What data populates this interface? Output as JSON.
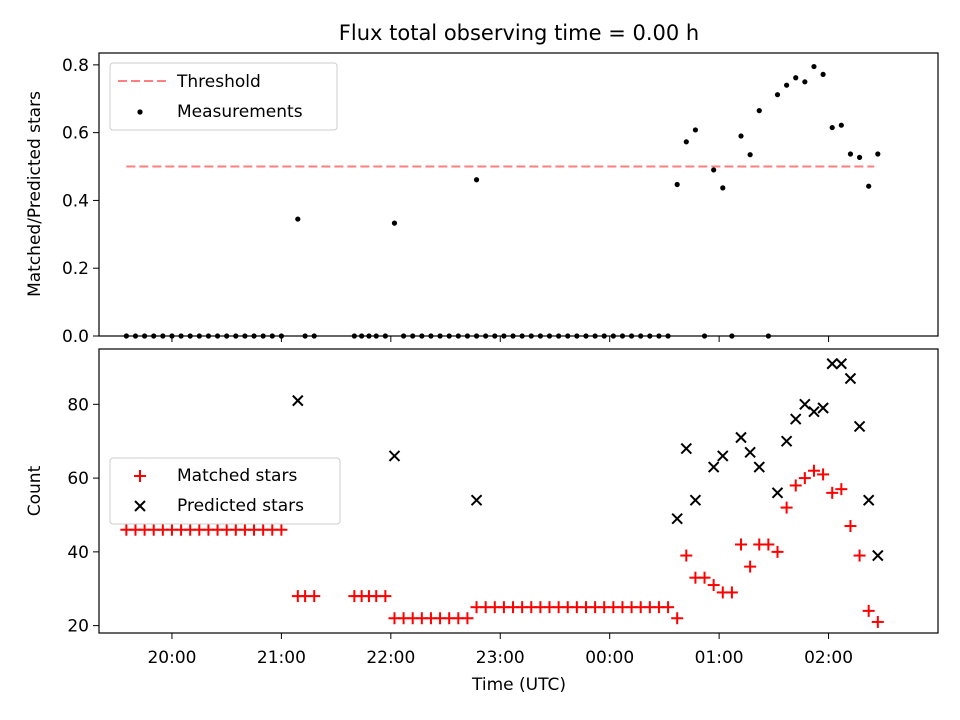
{
  "chart_data": [
    {
      "type": "scatter",
      "title": "Flux total observing time = 0.00 h",
      "xlabel": "",
      "ylabel": "Matched/Predicted stars",
      "x_range": [
        "19:20",
        "03:00"
      ],
      "ylim": [
        0,
        0.835
      ],
      "yticks": [
        0.0,
        0.2,
        0.4,
        0.6,
        0.8
      ],
      "ytick_labels": [
        "0.0",
        "0.2",
        "0.4",
        "0.6",
        "0.8"
      ],
      "xticks": [
        "20:00",
        "21:00",
        "22:00",
        "23:00",
        "00:00",
        "01:00",
        "02:00"
      ],
      "show_xtick_labels": false,
      "grid": false,
      "legend_placement": "upper-left",
      "threshold": {
        "name": "Threshold",
        "color": "#ff7f7f",
        "style": "dashed",
        "y": 0.5,
        "x_start": "19:35",
        "x_end": "02:25"
      },
      "series": [
        {
          "name": "Measurements",
          "color": "#000000",
          "marker": "dot",
          "points": [
            [
              "19:35",
              0
            ],
            [
              "19:40",
              0
            ],
            [
              "19:45",
              0
            ],
            [
              "19:50",
              0
            ],
            [
              "19:55",
              0
            ],
            [
              "20:00",
              0
            ],
            [
              "20:05",
              0
            ],
            [
              "20:10",
              0
            ],
            [
              "20:15",
              0
            ],
            [
              "20:20",
              0
            ],
            [
              "20:25",
              0
            ],
            [
              "20:30",
              0
            ],
            [
              "20:35",
              0
            ],
            [
              "20:40",
              0
            ],
            [
              "20:45",
              0
            ],
            [
              "20:50",
              0
            ],
            [
              "20:55",
              0
            ],
            [
              "21:00",
              0
            ],
            [
              "21:09",
              0.345
            ],
            [
              "21:13",
              0
            ],
            [
              "21:18",
              0
            ],
            [
              "21:40",
              0
            ],
            [
              "21:44",
              0
            ],
            [
              "21:48",
              0
            ],
            [
              "21:52",
              0
            ],
            [
              "21:57",
              0
            ],
            [
              "22:02",
              0.333
            ],
            [
              "22:07",
              0
            ],
            [
              "22:12",
              0
            ],
            [
              "22:17",
              0
            ],
            [
              "22:22",
              0
            ],
            [
              "22:27",
              0
            ],
            [
              "22:32",
              0
            ],
            [
              "22:37",
              0
            ],
            [
              "22:42",
              0
            ],
            [
              "22:47",
              0
            ],
            [
              "22:47",
              0.461
            ],
            [
              "22:52",
              0
            ],
            [
              "22:57",
              0
            ],
            [
              "23:02",
              0
            ],
            [
              "23:07",
              0
            ],
            [
              "23:12",
              0
            ],
            [
              "23:17",
              0
            ],
            [
              "23:22",
              0
            ],
            [
              "23:27",
              0
            ],
            [
              "23:32",
              0
            ],
            [
              "23:37",
              0
            ],
            [
              "23:42",
              0
            ],
            [
              "23:47",
              0
            ],
            [
              "23:52",
              0
            ],
            [
              "23:57",
              0
            ],
            [
              "00:02",
              0
            ],
            [
              "00:07",
              0
            ],
            [
              "00:12",
              0
            ],
            [
              "00:17",
              0
            ],
            [
              "00:22",
              0
            ],
            [
              "00:27",
              0
            ],
            [
              "00:32",
              0
            ],
            [
              "00:37",
              0.447
            ],
            [
              "00:42",
              0.573
            ],
            [
              "00:47",
              0.608
            ],
            [
              "00:52",
              0
            ],
            [
              "00:57",
              0.49
            ],
            [
              "01:02",
              0.437
            ],
            [
              "01:07",
              0
            ],
            [
              "01:12",
              0.59
            ],
            [
              "01:17",
              0.535
            ],
            [
              "01:22",
              0.665
            ],
            [
              "01:27",
              0
            ],
            [
              "01:32",
              0.712
            ],
            [
              "01:37",
              0.74
            ],
            [
              "01:42",
              0.762
            ],
            [
              "01:47",
              0.75
            ],
            [
              "01:52",
              0.795
            ],
            [
              "01:57",
              0.772
            ],
            [
              "02:02",
              0.615
            ],
            [
              "02:07",
              0.622
            ],
            [
              "02:12",
              0.537
            ],
            [
              "02:17",
              0.527
            ],
            [
              "02:22",
              0.442
            ],
            [
              "02:27",
              0.537
            ]
          ]
        }
      ]
    },
    {
      "type": "scatter",
      "title": "",
      "xlabel": "Time (UTC)",
      "ylabel": "Count",
      "x_range": [
        "19:20",
        "03:00"
      ],
      "ylim": [
        18,
        95
      ],
      "yticks": [
        20,
        40,
        60,
        80
      ],
      "ytick_labels": [
        "20",
        "40",
        "60",
        "80"
      ],
      "xticks": [
        "20:00",
        "21:00",
        "22:00",
        "23:00",
        "00:00",
        "01:00",
        "02:00"
      ],
      "show_xtick_labels": true,
      "grid": false,
      "legend_placement": "center-left",
      "series": [
        {
          "name": "Matched stars",
          "color": "#ff0000",
          "marker": "plus",
          "points": [
            [
              "19:35",
              46
            ],
            [
              "19:40",
              46
            ],
            [
              "19:45",
              46
            ],
            [
              "19:50",
              46
            ],
            [
              "19:55",
              46
            ],
            [
              "20:00",
              46
            ],
            [
              "20:05",
              46
            ],
            [
              "20:10",
              46
            ],
            [
              "20:15",
              46
            ],
            [
              "20:20",
              46
            ],
            [
              "20:25",
              46
            ],
            [
              "20:30",
              46
            ],
            [
              "20:35",
              46
            ],
            [
              "20:40",
              46
            ],
            [
              "20:45",
              46
            ],
            [
              "20:50",
              46
            ],
            [
              "20:55",
              46
            ],
            [
              "21:00",
              46
            ],
            [
              "21:09",
              28
            ],
            [
              "21:13",
              28
            ],
            [
              "21:18",
              28
            ],
            [
              "21:40",
              28
            ],
            [
              "21:44",
              28
            ],
            [
              "21:48",
              28
            ],
            [
              "21:52",
              28
            ],
            [
              "21:57",
              28
            ],
            [
              "22:02",
              22
            ],
            [
              "22:07",
              22
            ],
            [
              "22:12",
              22
            ],
            [
              "22:17",
              22
            ],
            [
              "22:22",
              22
            ],
            [
              "22:27",
              22
            ],
            [
              "22:32",
              22
            ],
            [
              "22:37",
              22
            ],
            [
              "22:42",
              22
            ],
            [
              "22:47",
              25
            ],
            [
              "22:52",
              25
            ],
            [
              "22:57",
              25
            ],
            [
              "23:02",
              25
            ],
            [
              "23:07",
              25
            ],
            [
              "23:12",
              25
            ],
            [
              "23:17",
              25
            ],
            [
              "23:22",
              25
            ],
            [
              "23:27",
              25
            ],
            [
              "23:32",
              25
            ],
            [
              "23:37",
              25
            ],
            [
              "23:42",
              25
            ],
            [
              "23:47",
              25
            ],
            [
              "23:52",
              25
            ],
            [
              "23:57",
              25
            ],
            [
              "00:02",
              25
            ],
            [
              "00:07",
              25
            ],
            [
              "00:12",
              25
            ],
            [
              "00:17",
              25
            ],
            [
              "00:22",
              25
            ],
            [
              "00:27",
              25
            ],
            [
              "00:32",
              25
            ],
            [
              "00:37",
              22
            ],
            [
              "00:42",
              39
            ],
            [
              "00:47",
              33
            ],
            [
              "00:52",
              33
            ],
            [
              "00:57",
              31
            ],
            [
              "01:02",
              29
            ],
            [
              "01:07",
              29
            ],
            [
              "01:12",
              42
            ],
            [
              "01:17",
              36
            ],
            [
              "01:22",
              42
            ],
            [
              "01:27",
              42
            ],
            [
              "01:32",
              40
            ],
            [
              "01:37",
              52
            ],
            [
              "01:42",
              58
            ],
            [
              "01:47",
              60
            ],
            [
              "01:52",
              62
            ],
            [
              "01:57",
              61
            ],
            [
              "02:02",
              56
            ],
            [
              "02:07",
              57
            ],
            [
              "02:12",
              47
            ],
            [
              "02:17",
              39
            ],
            [
              "02:22",
              24
            ],
            [
              "02:27",
              21
            ]
          ]
        },
        {
          "name": "Predicted stars",
          "color": "#000000",
          "marker": "x",
          "points": [
            [
              "21:09",
              81
            ],
            [
              "22:02",
              66
            ],
            [
              "22:47",
              54
            ],
            [
              "00:37",
              49
            ],
            [
              "00:42",
              68
            ],
            [
              "00:47",
              54
            ],
            [
              "00:57",
              63
            ],
            [
              "01:02",
              66
            ],
            [
              "01:12",
              71
            ],
            [
              "01:17",
              67
            ],
            [
              "01:22",
              63
            ],
            [
              "01:32",
              56
            ],
            [
              "01:37",
              70
            ],
            [
              "01:42",
              76
            ],
            [
              "01:47",
              80
            ],
            [
              "01:52",
              78
            ],
            [
              "01:57",
              79
            ],
            [
              "02:02",
              91
            ],
            [
              "02:07",
              91
            ],
            [
              "02:12",
              87
            ],
            [
              "02:17",
              74
            ],
            [
              "02:22",
              54
            ],
            [
              "02:27",
              39
            ]
          ]
        }
      ]
    }
  ]
}
